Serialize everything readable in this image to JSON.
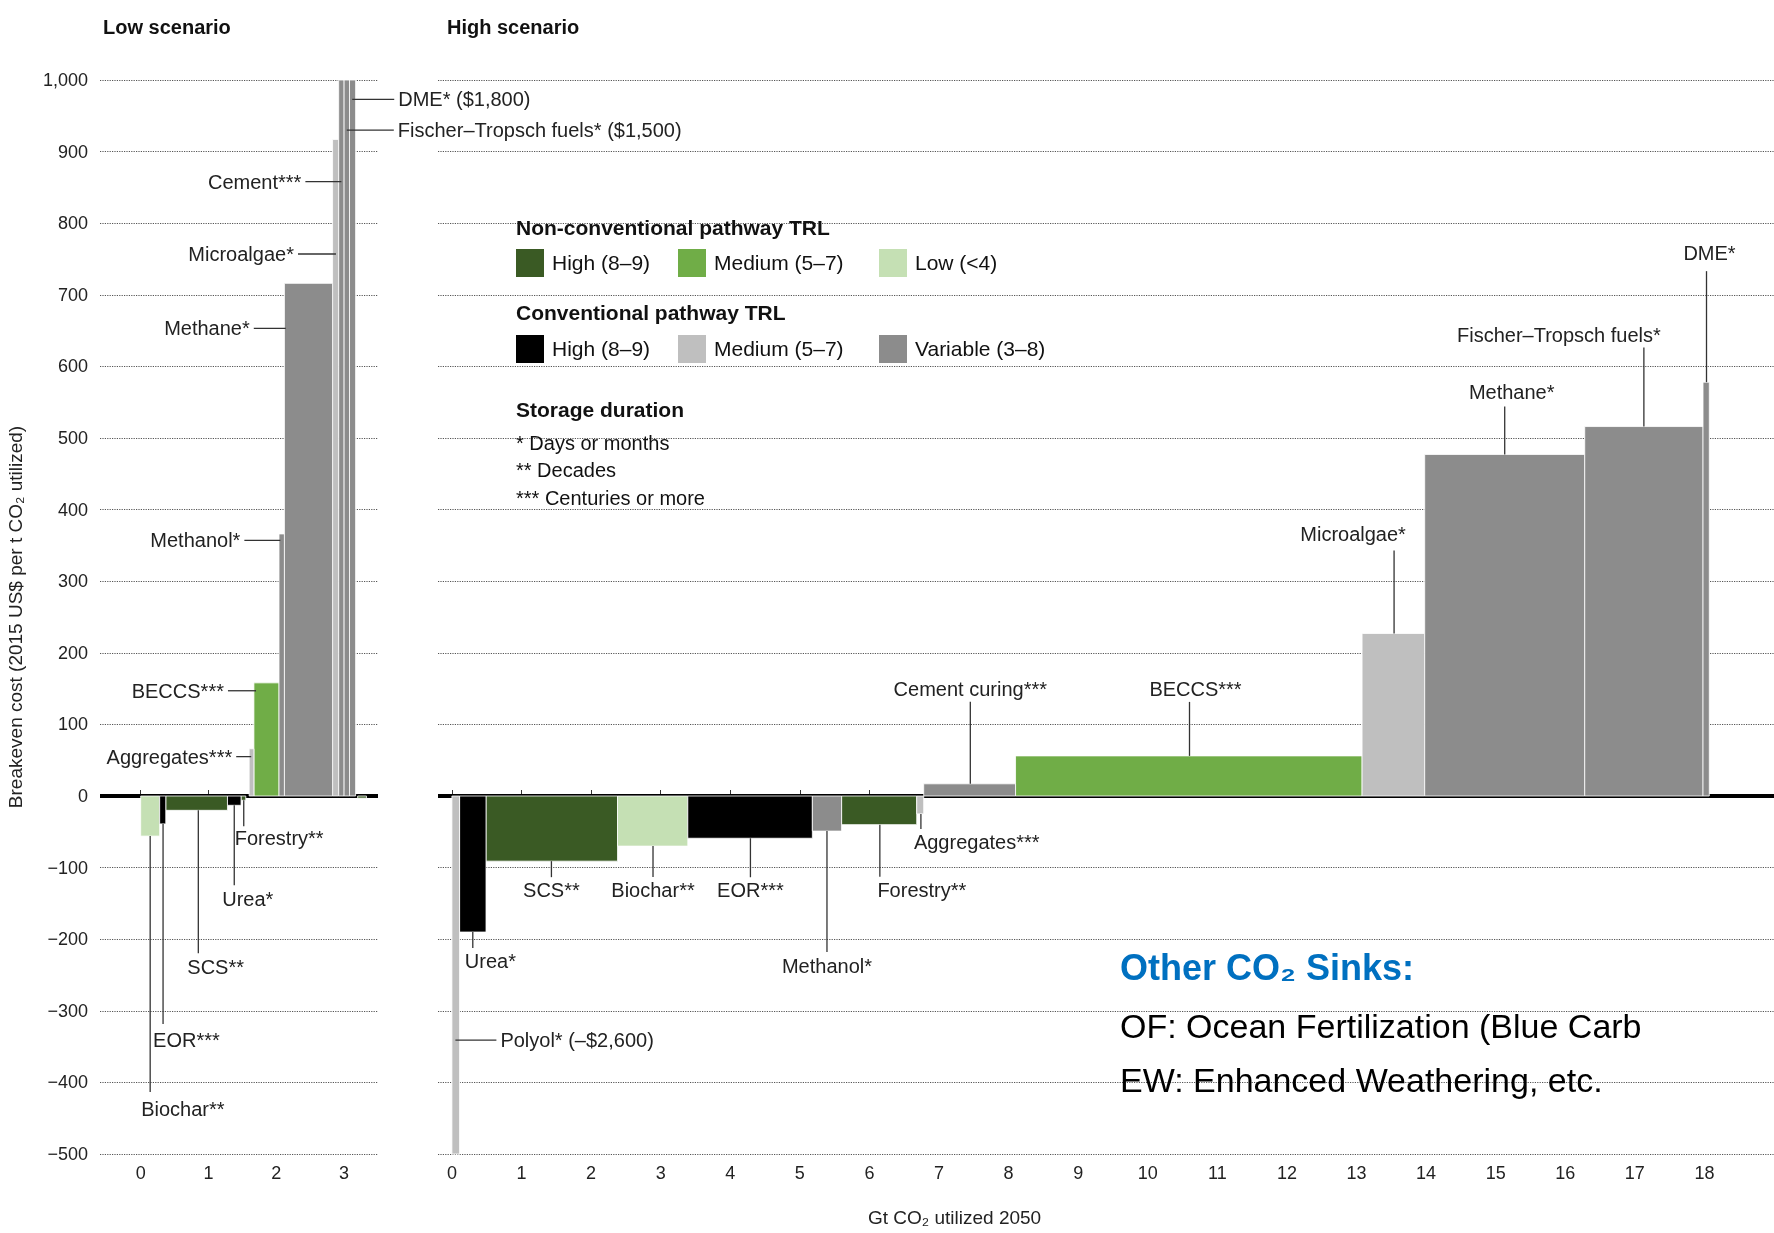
{
  "chart_data": [
    {
      "type": "histogram",
      "title": "Low scenario",
      "ylabel": "Breakeven cost (2015 US$ per t CO₂ utilized)",
      "bins": [
        0,
        0.28,
        0.37,
        1.28,
        1.48,
        1.55,
        1.6,
        1.67,
        2.04,
        2.12,
        2.83,
        2.92,
        3.0,
        3.08,
        3.17,
        3.2,
        3.33
      ],
      "series": [
        {
          "color": "#3a5a24",
          "values": [
            null,
            null,
            -20,
            null,
            -6,
            null,
            null,
            null,
            null,
            null,
            null,
            null,
            null,
            null,
            null,
            -3
          ]
        },
        {
          "color": "#70ad47",
          "values": [
            null,
            null,
            null,
            null,
            null,
            null,
            null,
            158,
            null,
            null,
            null,
            null,
            null,
            null,
            null,
            null
          ]
        },
        {
          "color": "#c5e0b4",
          "values": [
            -56,
            null,
            null,
            null,
            null,
            null,
            null,
            null,
            null,
            null,
            null,
            null,
            null,
            null,
            null,
            null
          ]
        },
        {
          "color": "#000000",
          "values": [
            null,
            -39,
            null,
            -13,
            null,
            null,
            null,
            null,
            null,
            null,
            null,
            null,
            null,
            null,
            null,
            null
          ]
        },
        {
          "color": "#bfbfbf",
          "values": [
            null,
            null,
            null,
            null,
            null,
            null,
            66,
            null,
            null,
            null,
            917,
            null,
            null,
            null,
            null,
            null
          ]
        },
        {
          "color": "#8c8c8c",
          "values": [
            null,
            null,
            null,
            null,
            null,
            null,
            null,
            null,
            366,
            716,
            null,
            1000,
            1000,
            1000,
            null,
            null
          ]
        }
      ],
      "xlim": [
        -0.6,
        3.5
      ],
      "xticks": [
        0,
        1,
        2,
        3
      ],
      "ylim": [
        -500,
        1000
      ],
      "yticks": [
        {
          "value": -500,
          "label": "−500"
        },
        {
          "value": -400,
          "label": "−400"
        },
        {
          "value": -300,
          "label": "−300"
        },
        {
          "value": -200,
          "label": "−200"
        },
        {
          "value": -100,
          "label": "−100"
        },
        0,
        100,
        200,
        300,
        400,
        500,
        600,
        700,
        800,
        900,
        {
          "value": 1000,
          "label": "1,000"
        }
      ],
      "grid": "y",
      "ref_lines": [
        {
          "axis": "y",
          "value": 0,
          "color": "#000000"
        }
      ],
      "annotations": [
        {
          "text": "DME* ($1,800)",
          "x": 3.12,
          "y": 973
        },
        {
          "text": "Fischer–Tropsch fuels* ($1,500)",
          "x": 3.04,
          "y": 930
        },
        {
          "text": "Cement***",
          "x": 2.96,
          "y": 858
        },
        {
          "text": "Microalgae*",
          "x": 2.88,
          "y": 757
        },
        {
          "text": "Methane*",
          "x": 2.14,
          "y": 653
        },
        {
          "text": "Methanol*",
          "x": 2.06,
          "y": 357
        },
        {
          "text": "BECCS***",
          "x": 1.7,
          "y": 147
        },
        {
          "text": "Aggregates***",
          "x": 1.63,
          "y": 55
        },
        {
          "text": "Forestry**",
          "x": 1.52,
          "y": -6
        },
        {
          "text": "Urea*",
          "x": 1.38,
          "y": -13
        },
        {
          "text": "SCS**",
          "x": 0.85,
          "y": -20
        },
        {
          "text": "EOR***",
          "x": 0.33,
          "y": -39
        },
        {
          "text": "Biochar**",
          "x": 0.14,
          "y": -56
        }
      ]
    },
    {
      "type": "histogram",
      "title": "High scenario",
      "xlabel": "Gt CO₂ utilized 2050",
      "bins": [
        0,
        0.11,
        0.49,
        2.38,
        3.39,
        5.18,
        5.6,
        6.68,
        6.78,
        8.1,
        13.08,
        13.98,
        16.28,
        17.98,
        18.07
      ],
      "series": [
        {
          "name": "High (8–9)",
          "color": "#3a5a24",
          "values": [
            null,
            null,
            -91,
            null,
            null,
            null,
            -40,
            null,
            null,
            null,
            null,
            null,
            null,
            null
          ]
        },
        {
          "name": "Medium (5–7)",
          "color": "#70ad47",
          "values": [
            null,
            null,
            null,
            null,
            null,
            null,
            null,
            null,
            null,
            56,
            null,
            null,
            null,
            null
          ]
        },
        {
          "name": "Low (<4)",
          "color": "#c5e0b4",
          "values": [
            null,
            null,
            null,
            -70,
            null,
            null,
            null,
            null,
            null,
            null,
            null,
            null,
            null,
            null
          ]
        },
        {
          "name": "High (8–9)",
          "color": "#000000",
          "values": [
            null,
            -190,
            null,
            null,
            -59,
            null,
            null,
            null,
            null,
            null,
            null,
            null,
            null,
            null
          ]
        },
        {
          "name": "Medium (5–7)",
          "color": "#bfbfbf",
          "values": [
            -500,
            null,
            null,
            null,
            null,
            null,
            null,
            -25,
            null,
            null,
            227,
            null,
            null,
            null
          ]
        },
        {
          "name": "Variable (3–8)",
          "color": "#8c8c8c",
          "values": [
            null,
            null,
            null,
            null,
            null,
            -49,
            null,
            null,
            17,
            null,
            null,
            477,
            516,
            578
          ]
        }
      ],
      "xlim": [
        -0.2,
        19
      ],
      "xticks": [
        0,
        1,
        2,
        3,
        4,
        5,
        6,
        7,
        8,
        9,
        10,
        11,
        12,
        13,
        14,
        15,
        16,
        17,
        18
      ],
      "ylim": [
        -500,
        1000
      ],
      "yticks": [
        -500,
        -400,
        -300,
        -200,
        -100,
        0,
        100,
        200,
        300,
        400,
        500,
        600,
        700,
        800,
        900,
        1000
      ],
      "tick_labels": "x",
      "grid": "y",
      "legend": "top left",
      "ref_lines": [
        {
          "axis": "y",
          "value": 0,
          "color": "#000000"
        }
      ],
      "annotations": [
        {
          "text": "Polyol* (–$2,600)",
          "x": 0.05,
          "y": -341
        },
        {
          "text": "Urea*",
          "x": 0.3,
          "y": -190
        },
        {
          "text": "SCS**",
          "x": 1.43,
          "y": -91
        },
        {
          "text": "Biochar**",
          "x": 2.89,
          "y": -70
        },
        {
          "text": "EOR***",
          "x": 4.29,
          "y": -59
        },
        {
          "text": "Methanol*",
          "x": 5.39,
          "y": -49
        },
        {
          "text": "Forestry**",
          "x": 6.15,
          "y": -40
        },
        {
          "text": "Aggregates***",
          "x": 6.74,
          "y": -25
        },
        {
          "text": "Cement curing***",
          "x": 7.45,
          "y": 17
        },
        {
          "text": "BECCS***",
          "x": 10.6,
          "y": 56
        },
        {
          "text": "Microalgae*",
          "x": 13.54,
          "y": 227
        },
        {
          "text": "Methane*",
          "x": 15.13,
          "y": 477
        },
        {
          "text": "Fischer–Tropsch fuels*",
          "x": 17.13,
          "y": 516
        },
        {
          "text": "DME*",
          "x": 18.03,
          "y": 578
        },
        "Non-conventional pathway TRL",
        "Conventional pathway TRL",
        "Storage duration",
        "* Days or months",
        "** Decades",
        "*** Centuries or more",
        "Other CO₂ Sinks:",
        "OF: Ocean Fertilization (Blue Carb",
        "EW: Enhanced Weathering, etc."
      ]
    }
  ]
}
